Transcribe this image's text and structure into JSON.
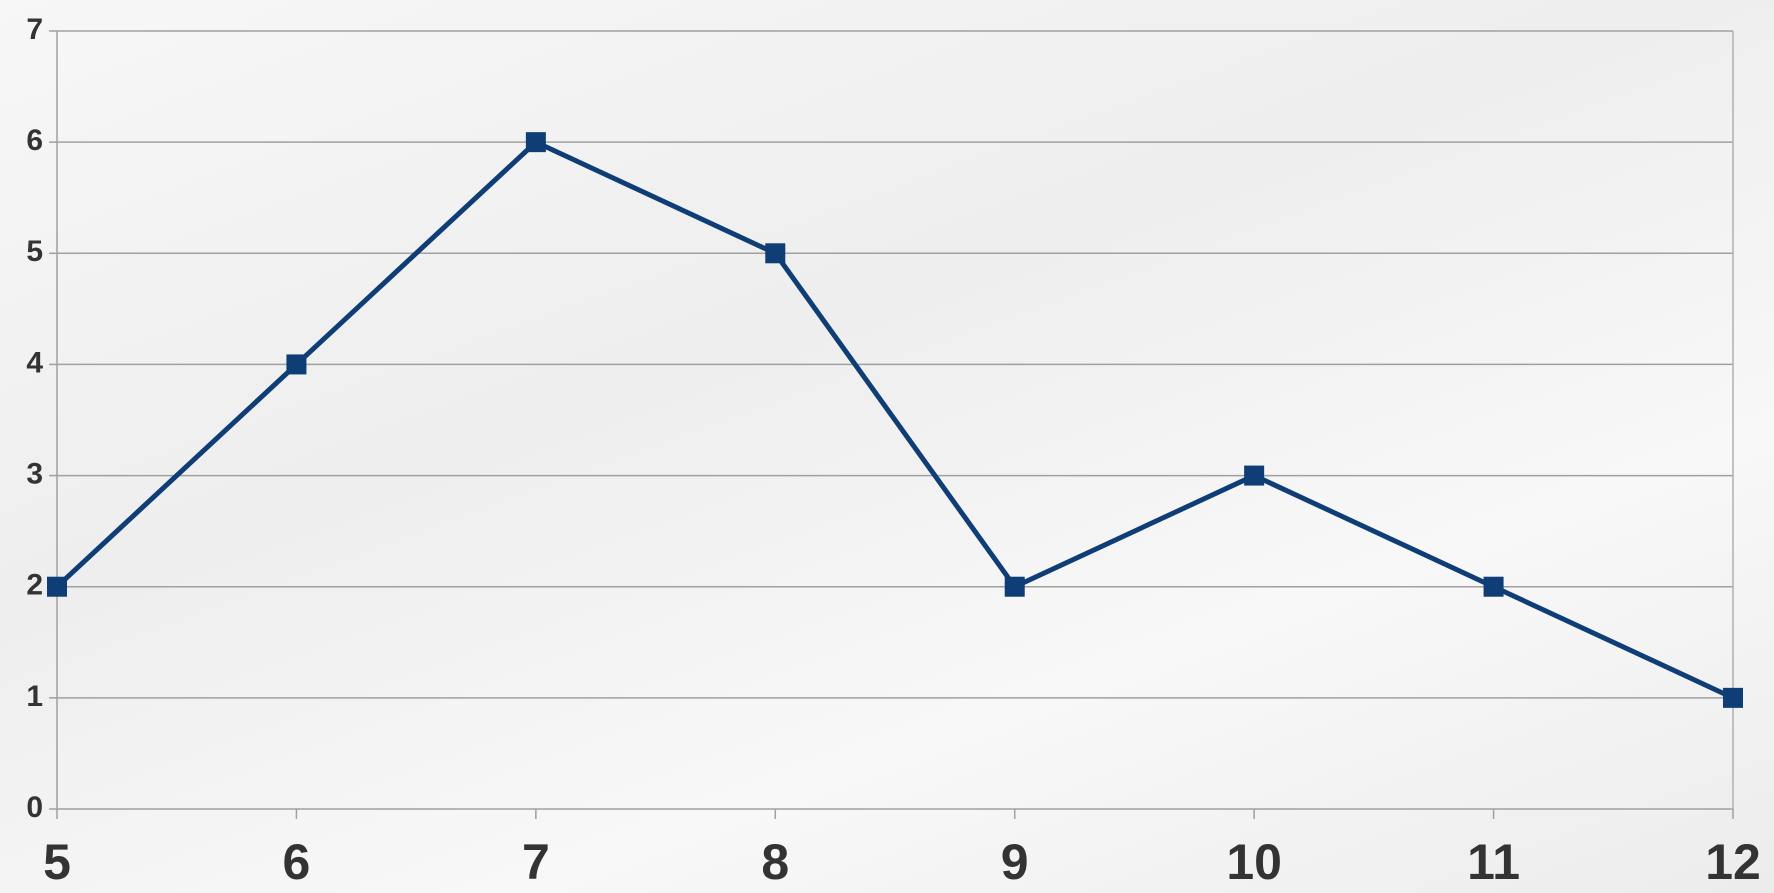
{
  "chart_data": {
    "type": "line",
    "x": [
      5,
      6,
      7,
      8,
      9,
      10,
      11,
      12
    ],
    "values": [
      2,
      4,
      6,
      5,
      2,
      3,
      2,
      1
    ],
    "color": "#0f3d75",
    "xlim": [
      5,
      12
    ],
    "xticks": [
      5,
      6,
      7,
      8,
      9,
      10,
      11,
      12
    ],
    "ylim": [
      0,
      7
    ],
    "yticks": [
      0,
      1,
      2,
      3,
      4,
      5,
      6,
      7
    ],
    "grid": true
  }
}
